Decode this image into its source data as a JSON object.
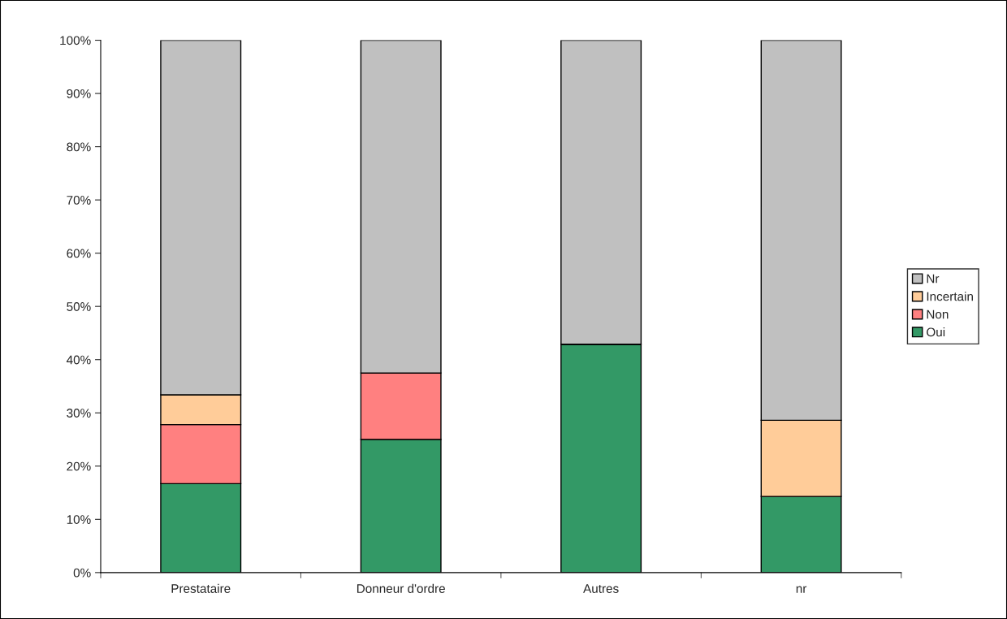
{
  "chart_data": {
    "type": "bar",
    "stacked": true,
    "categories": [
      "Prestataire",
      "Donneur d'ordre",
      "Autres",
      "nr"
    ],
    "series": [
      {
        "name": "Oui",
        "color": "#339966",
        "values": [
          16.7,
          25,
          42.9,
          14.3
        ]
      },
      {
        "name": "Non",
        "color": "#ff8080",
        "values": [
          11.1,
          12.5,
          0,
          0
        ]
      },
      {
        "name": "Incertain",
        "color": "#ffcc99",
        "values": [
          5.6,
          0,
          0,
          14.3
        ]
      },
      {
        "name": "Nr",
        "color": "#c0c0c0",
        "values": [
          66.6,
          62.5,
          57.1,
          71.4
        ]
      }
    ],
    "ylim": [
      0,
      100
    ],
    "yticks": [
      {
        "value": 0,
        "label": "0%"
      },
      {
        "value": 10,
        "label": "10%"
      },
      {
        "value": 20,
        "label": "20%"
      },
      {
        "value": 30,
        "label": "30%"
      },
      {
        "value": 40,
        "label": "40%"
      },
      {
        "value": 50,
        "label": "50%"
      },
      {
        "value": 60,
        "label": "60%"
      },
      {
        "value": 70,
        "label": "70%"
      },
      {
        "value": 80,
        "label": "80%"
      },
      {
        "value": 90,
        "label": "90%"
      },
      {
        "value": 100,
        "label": "100%"
      }
    ],
    "grid": false,
    "legend": "right"
  }
}
